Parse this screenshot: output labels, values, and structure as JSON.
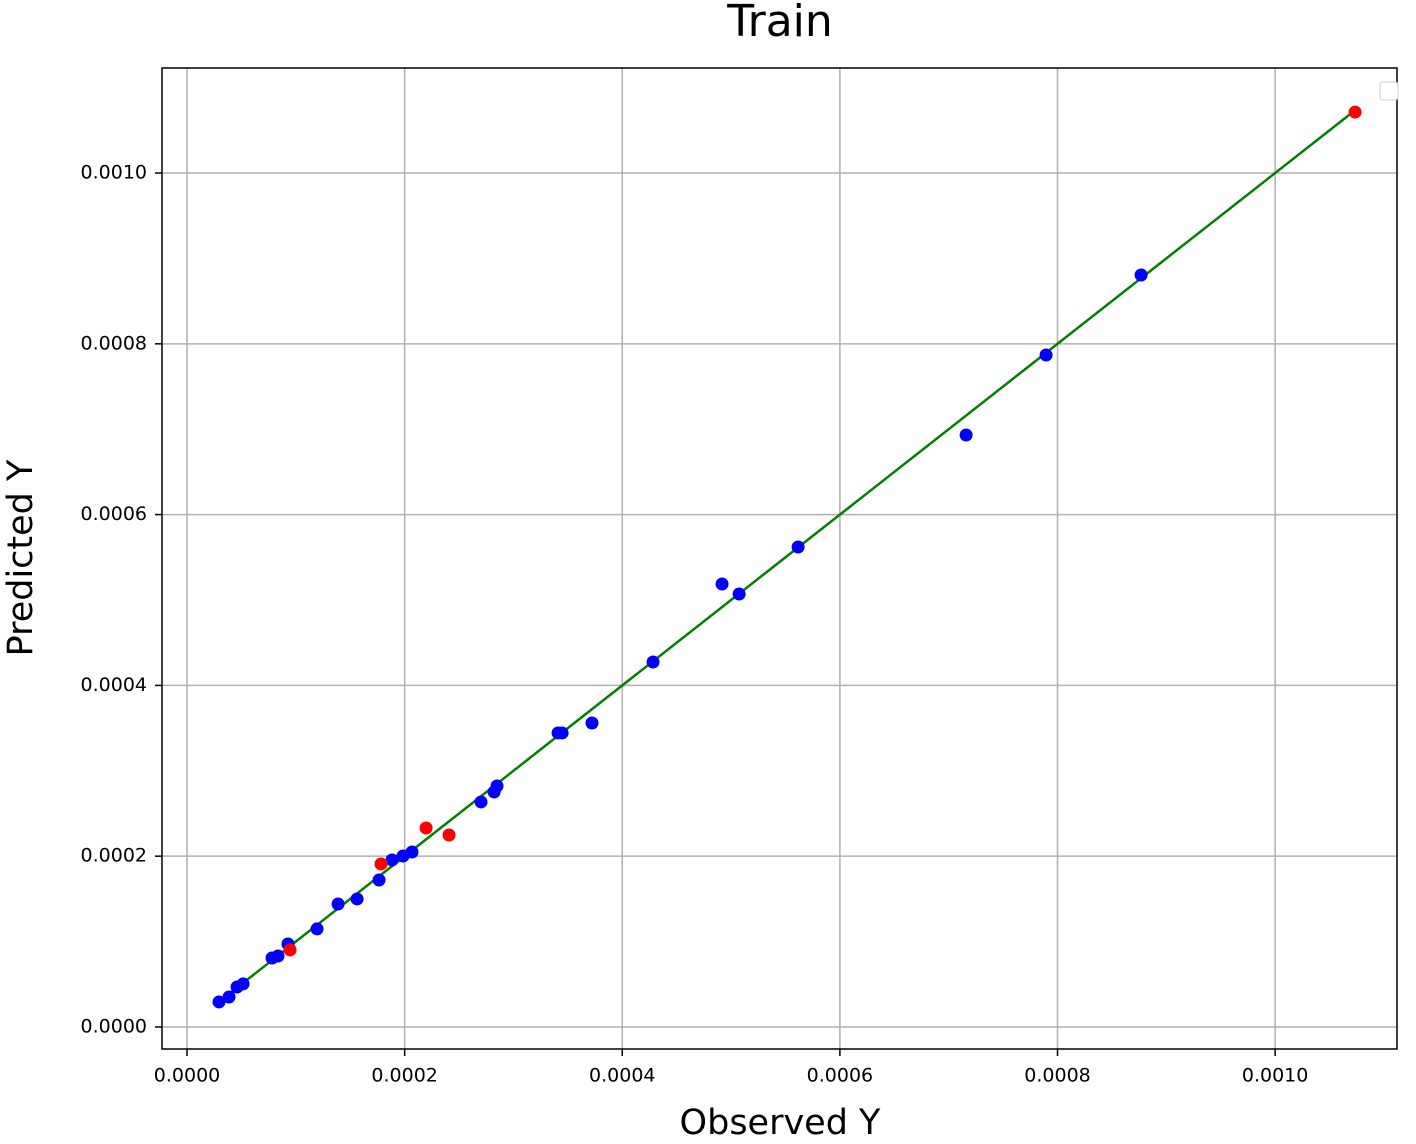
{
  "chart_data": {
    "type": "scatter",
    "title": "Train",
    "xlabel": "Observed Y",
    "ylabel": "Predicted Y",
    "xlim": [
      -2.3e-05,
      0.001112
    ],
    "ylim": [
      -2.58e-05,
      0.001123
    ],
    "xticks": [
      {
        "value": 0,
        "label": "0.0000"
      },
      {
        "value": 0.0002,
        "label": "0.0002"
      },
      {
        "value": 0.0004,
        "label": "0.0004"
      },
      {
        "value": 0.0006,
        "label": "0.0006"
      },
      {
        "value": 0.0008,
        "label": "0.0008"
      },
      {
        "value": 0.001,
        "label": "0.0010"
      }
    ],
    "yticks": [
      {
        "value": 0,
        "label": "0.0000"
      },
      {
        "value": 0.0002,
        "label": "0.0002"
      },
      {
        "value": 0.0004,
        "label": "0.0004"
      },
      {
        "value": 0.0006,
        "label": "0.0006"
      },
      {
        "value": 0.0008,
        "label": "0.0008"
      },
      {
        "value": 0.001,
        "label": "0.0010"
      }
    ],
    "grid": true,
    "series": [
      {
        "type": "line",
        "color": "#008000",
        "x": [
          2.94e-05,
          0.0010735
        ],
        "y": [
          2.94e-05,
          0.0010735
        ]
      },
      {
        "type": "scatter",
        "color": "#0000ff",
        "x": [
          2.94e-05,
          3.86e-05,
          4.6e-05,
          5.15e-05,
          7.81e-05,
          8.36e-05,
          9.28e-05,
          0.0001195,
          0.0001388,
          0.0001563,
          0.0001765,
          0.0001884,
          0.0001985,
          0.0002068,
          0.0002702,
          0.0002822,
          0.0002849,
          0.000341,
          0.0003447,
          0.0003722,
          0.0004283,
          0.0004917,
          0.0005074,
          0.0005616,
          0.000716,
          0.0007895,
          0.0008768
        ],
        "y": [
          2.93e-05,
          3.51e-05,
          4.68e-05,
          5.04e-05,
          8.08e-05,
          8.31e-05,
          9.72e-05,
          0.0001148,
          0.000144,
          0.0001499,
          0.0001721,
          0.0001956,
          0.0002002,
          0.0002049,
          0.0002635,
          0.0002752,
          0.0002822,
          0.0003443,
          0.0003443,
          0.000356,
          0.0004274,
          0.0005187,
          0.000507,
          0.0005621,
          0.0006932,
          0.0007869,
          0.0008806
        ]
      },
      {
        "type": "scatter",
        "color": "#ff0000",
        "x": [
          9.47e-05,
          0.0001783,
          0.0002197,
          0.0002408,
          0.0010735
        ],
        "y": [
          9.02e-05,
          0.0001909,
          0.000233,
          0.0002248,
          0.0010714
        ]
      }
    ]
  }
}
